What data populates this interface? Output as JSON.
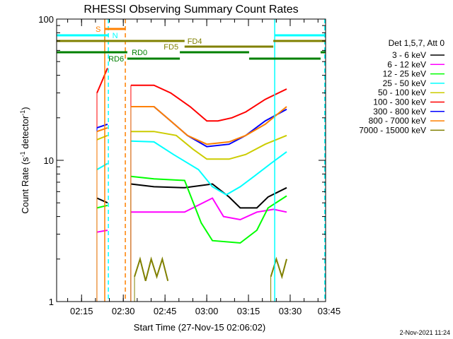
{
  "chart_data": {
    "type": "line",
    "title": "RHESSI Observing Summary Count Rates",
    "xlabel": "Start Time (27-Nov-15 02:06:02)",
    "ylabel": "Count Rate (s",
    "ylabel_sup1": "-1",
    "ylabel_mid": " detector",
    "ylabel_sup2": "-1",
    "ylabel_end": ")",
    "yscale": "log",
    "ylim": [
      1,
      100
    ],
    "xlim_minutes_from_start": [
      0,
      96.7
    ],
    "x_ticks": [
      {
        "t": 8.97,
        "label": "02:15"
      },
      {
        "t": 23.97,
        "label": "02:30"
      },
      {
        "t": 38.97,
        "label": "02:45"
      },
      {
        "t": 53.97,
        "label": "03:00"
      },
      {
        "t": 68.97,
        "label": "03:15"
      },
      {
        "t": 83.97,
        "label": "03:30"
      },
      {
        "t": 98.97,
        "label": "03:45"
      }
    ],
    "y_ticks": [
      {
        "v": 1,
        "label": "1"
      },
      {
        "v": 10,
        "label": "10"
      },
      {
        "v": 100,
        "label": "100"
      }
    ],
    "legend_title": "Det 1,5,7, Att 0",
    "legend_placement": "right",
    "series": [
      {
        "name": "3 - 6 keV",
        "color": "#000000",
        "segments": [
          [
            [
              14.5,
              5.4
            ],
            [
              18.3,
              5.0
            ]
          ],
          [
            [
              26.7,
              6.8
            ],
            [
              35,
              6.5
            ],
            [
              46,
              6.4
            ],
            [
              56,
              6.8
            ],
            [
              62,
              5.5
            ],
            [
              66,
              4.6
            ],
            [
              72,
              4.6
            ],
            [
              76,
              5.5
            ],
            [
              82.7,
              6.4
            ]
          ]
        ]
      },
      {
        "name": "6 - 12 keV",
        "color": "#ff00ff",
        "segments": [
          [
            [
              14.5,
              3.1
            ],
            [
              18.3,
              3.2
            ]
          ],
          [
            [
              26.7,
              4.3
            ],
            [
              35,
              4.3
            ],
            [
              46,
              4.3
            ],
            [
              56,
              5.4
            ],
            [
              60,
              4.0
            ],
            [
              66,
              3.8
            ],
            [
              72,
              4.3
            ],
            [
              78,
              4.5
            ],
            [
              82.7,
              4.3
            ]
          ]
        ]
      },
      {
        "name": "12 - 25 keV",
        "color": "#00ff00",
        "segments": [
          [
            [
              14.5,
              4.6
            ],
            [
              18.3,
              4.8
            ]
          ],
          [
            [
              26.7,
              7.7
            ],
            [
              35,
              7.4
            ],
            [
              46,
              7.2
            ],
            [
              52,
              3.6
            ],
            [
              56,
              2.7
            ],
            [
              66,
              2.6
            ],
            [
              72,
              3.2
            ],
            [
              76,
              4.6
            ],
            [
              82.7,
              5.6
            ]
          ]
        ]
      },
      {
        "name": "25 - 50 keV",
        "color": "#00ffff",
        "segments": [
          [
            [
              14.5,
              8.6
            ],
            [
              18.3,
              9.5
            ]
          ],
          [
            [
              26.7,
              13.7
            ],
            [
              35,
              13.5
            ],
            [
              42,
              11
            ],
            [
              51,
              8.6
            ],
            [
              56,
              6.5
            ],
            [
              61,
              5.7
            ],
            [
              66,
              6.5
            ],
            [
              71,
              7.7
            ],
            [
              77,
              9.5
            ],
            [
              82.7,
              11.5
            ]
          ]
        ]
      },
      {
        "name": "50 - 100 keV",
        "color": "#cccc00",
        "segments": [
          [
            [
              14.5,
              14
            ],
            [
              18.3,
              15
            ]
          ],
          [
            [
              26.7,
              16
            ],
            [
              35,
              16
            ],
            [
              43,
              15
            ],
            [
              49,
              12
            ],
            [
              54,
              10.2
            ],
            [
              62,
              10.2
            ],
            [
              68,
              11
            ],
            [
              75,
              13
            ],
            [
              82.7,
              15
            ]
          ]
        ]
      },
      {
        "name": "100 - 300 keV",
        "color": "#ff0000",
        "segments": [
          [
            [
              14.5,
              30
            ],
            [
              16.5,
              37
            ],
            [
              18.3,
              45
            ]
          ],
          [
            [
              26.7,
              34
            ],
            [
              35,
              34
            ],
            [
              41,
              30
            ],
            [
              48,
              24
            ],
            [
              54,
              19
            ],
            [
              58,
              19
            ],
            [
              63,
              20
            ],
            [
              68,
              22
            ],
            [
              75,
              27
            ],
            [
              82.7,
              32
            ]
          ]
        ]
      },
      {
        "name": "300 - 800 keV",
        "color": "#0000ff",
        "segments": [
          [
            [
              14.5,
              17
            ],
            [
              18.3,
              18
            ]
          ],
          [
            [
              26.7,
              24
            ],
            [
              35,
              24
            ],
            [
              41,
              19
            ],
            [
              47,
              15
            ],
            [
              54,
              12.5
            ],
            [
              62,
              13
            ],
            [
              68,
              15
            ],
            [
              75,
              19
            ],
            [
              82.7,
              23
            ]
          ]
        ]
      },
      {
        "name": "800 - 7000 keV",
        "color": "#ff8000",
        "segments": [
          [
            [
              14.5,
              16
            ],
            [
              18.3,
              17
            ]
          ],
          [
            [
              26.7,
              24
            ],
            [
              35,
              24
            ],
            [
              41,
              19
            ],
            [
              47,
              15
            ],
            [
              54,
              13
            ],
            [
              62,
              13.5
            ],
            [
              68,
              15
            ],
            [
              75,
              18
            ],
            [
              82.7,
              24
            ]
          ]
        ]
      },
      {
        "name": "7000 - 15000 keV",
        "color": "#808000",
        "segments": [
          [
            [
              28,
              1.5
            ],
            [
              30,
              2
            ],
            [
              32,
              1.4
            ],
            [
              34,
              2
            ],
            [
              36,
              1.5
            ],
            [
              38,
              2
            ],
            [
              40,
              1.4
            ]
          ],
          [
            [
              77,
              1.5
            ],
            [
              79,
              2
            ],
            [
              81,
              1.5
            ],
            [
              82.7,
              2
            ]
          ]
        ]
      }
    ],
    "annotations": {
      "flags": [
        {
          "label": "S",
          "color": "#ff8000",
          "row": 0,
          "spans": [
            [
              17.3,
              24.7
            ]
          ],
          "label_t": 14.0
        },
        {
          "label": "N",
          "color": "#00ffff",
          "row": 1,
          "spans": [
            [
              0,
              18.6
            ],
            [
              78.4,
              96.7
            ]
          ],
          "label_t": 20.0
        },
        {
          "label": "FD4",
          "color": "#808000",
          "row": 2,
          "spans": [
            [
              0,
              46.0
            ],
            [
              77.9,
              96.7
            ]
          ],
          "label_t": 47.0
        },
        {
          "label": "FD5",
          "color": "#808000",
          "row": 3,
          "spans": [
            [
              46.0,
              77.9
            ]
          ],
          "label_t": 38.5
        },
        {
          "label": "RD0",
          "color": "#008000",
          "row": 4,
          "spans": [
            [
              0,
              25.4
            ],
            [
              44.3,
              69.2
            ],
            [
              94.9,
              96.7
            ]
          ],
          "label_t": 27.0
        },
        {
          "label": "RD6",
          "color": "#008000",
          "row": 5,
          "spans": [
            [
              25.4,
              44.3
            ],
            [
              69.2,
              94.9
            ]
          ],
          "label_t": 18.6
        }
      ],
      "vlines": [
        {
          "t": 17.3,
          "color": "#ff8000",
          "style": "solid"
        },
        {
          "t": 18.6,
          "color": "#00ffff",
          "style": "dashed"
        },
        {
          "t": 24.7,
          "color": "#ff8000",
          "style": "dashed"
        },
        {
          "t": 78.4,
          "color": "#00ffff",
          "style": "solid"
        },
        {
          "t": 96.4,
          "color": "#00ffff",
          "style": "dashed"
        }
      ]
    }
  },
  "footer": {
    "timestamp": "2-Nov-2021 11:24"
  }
}
